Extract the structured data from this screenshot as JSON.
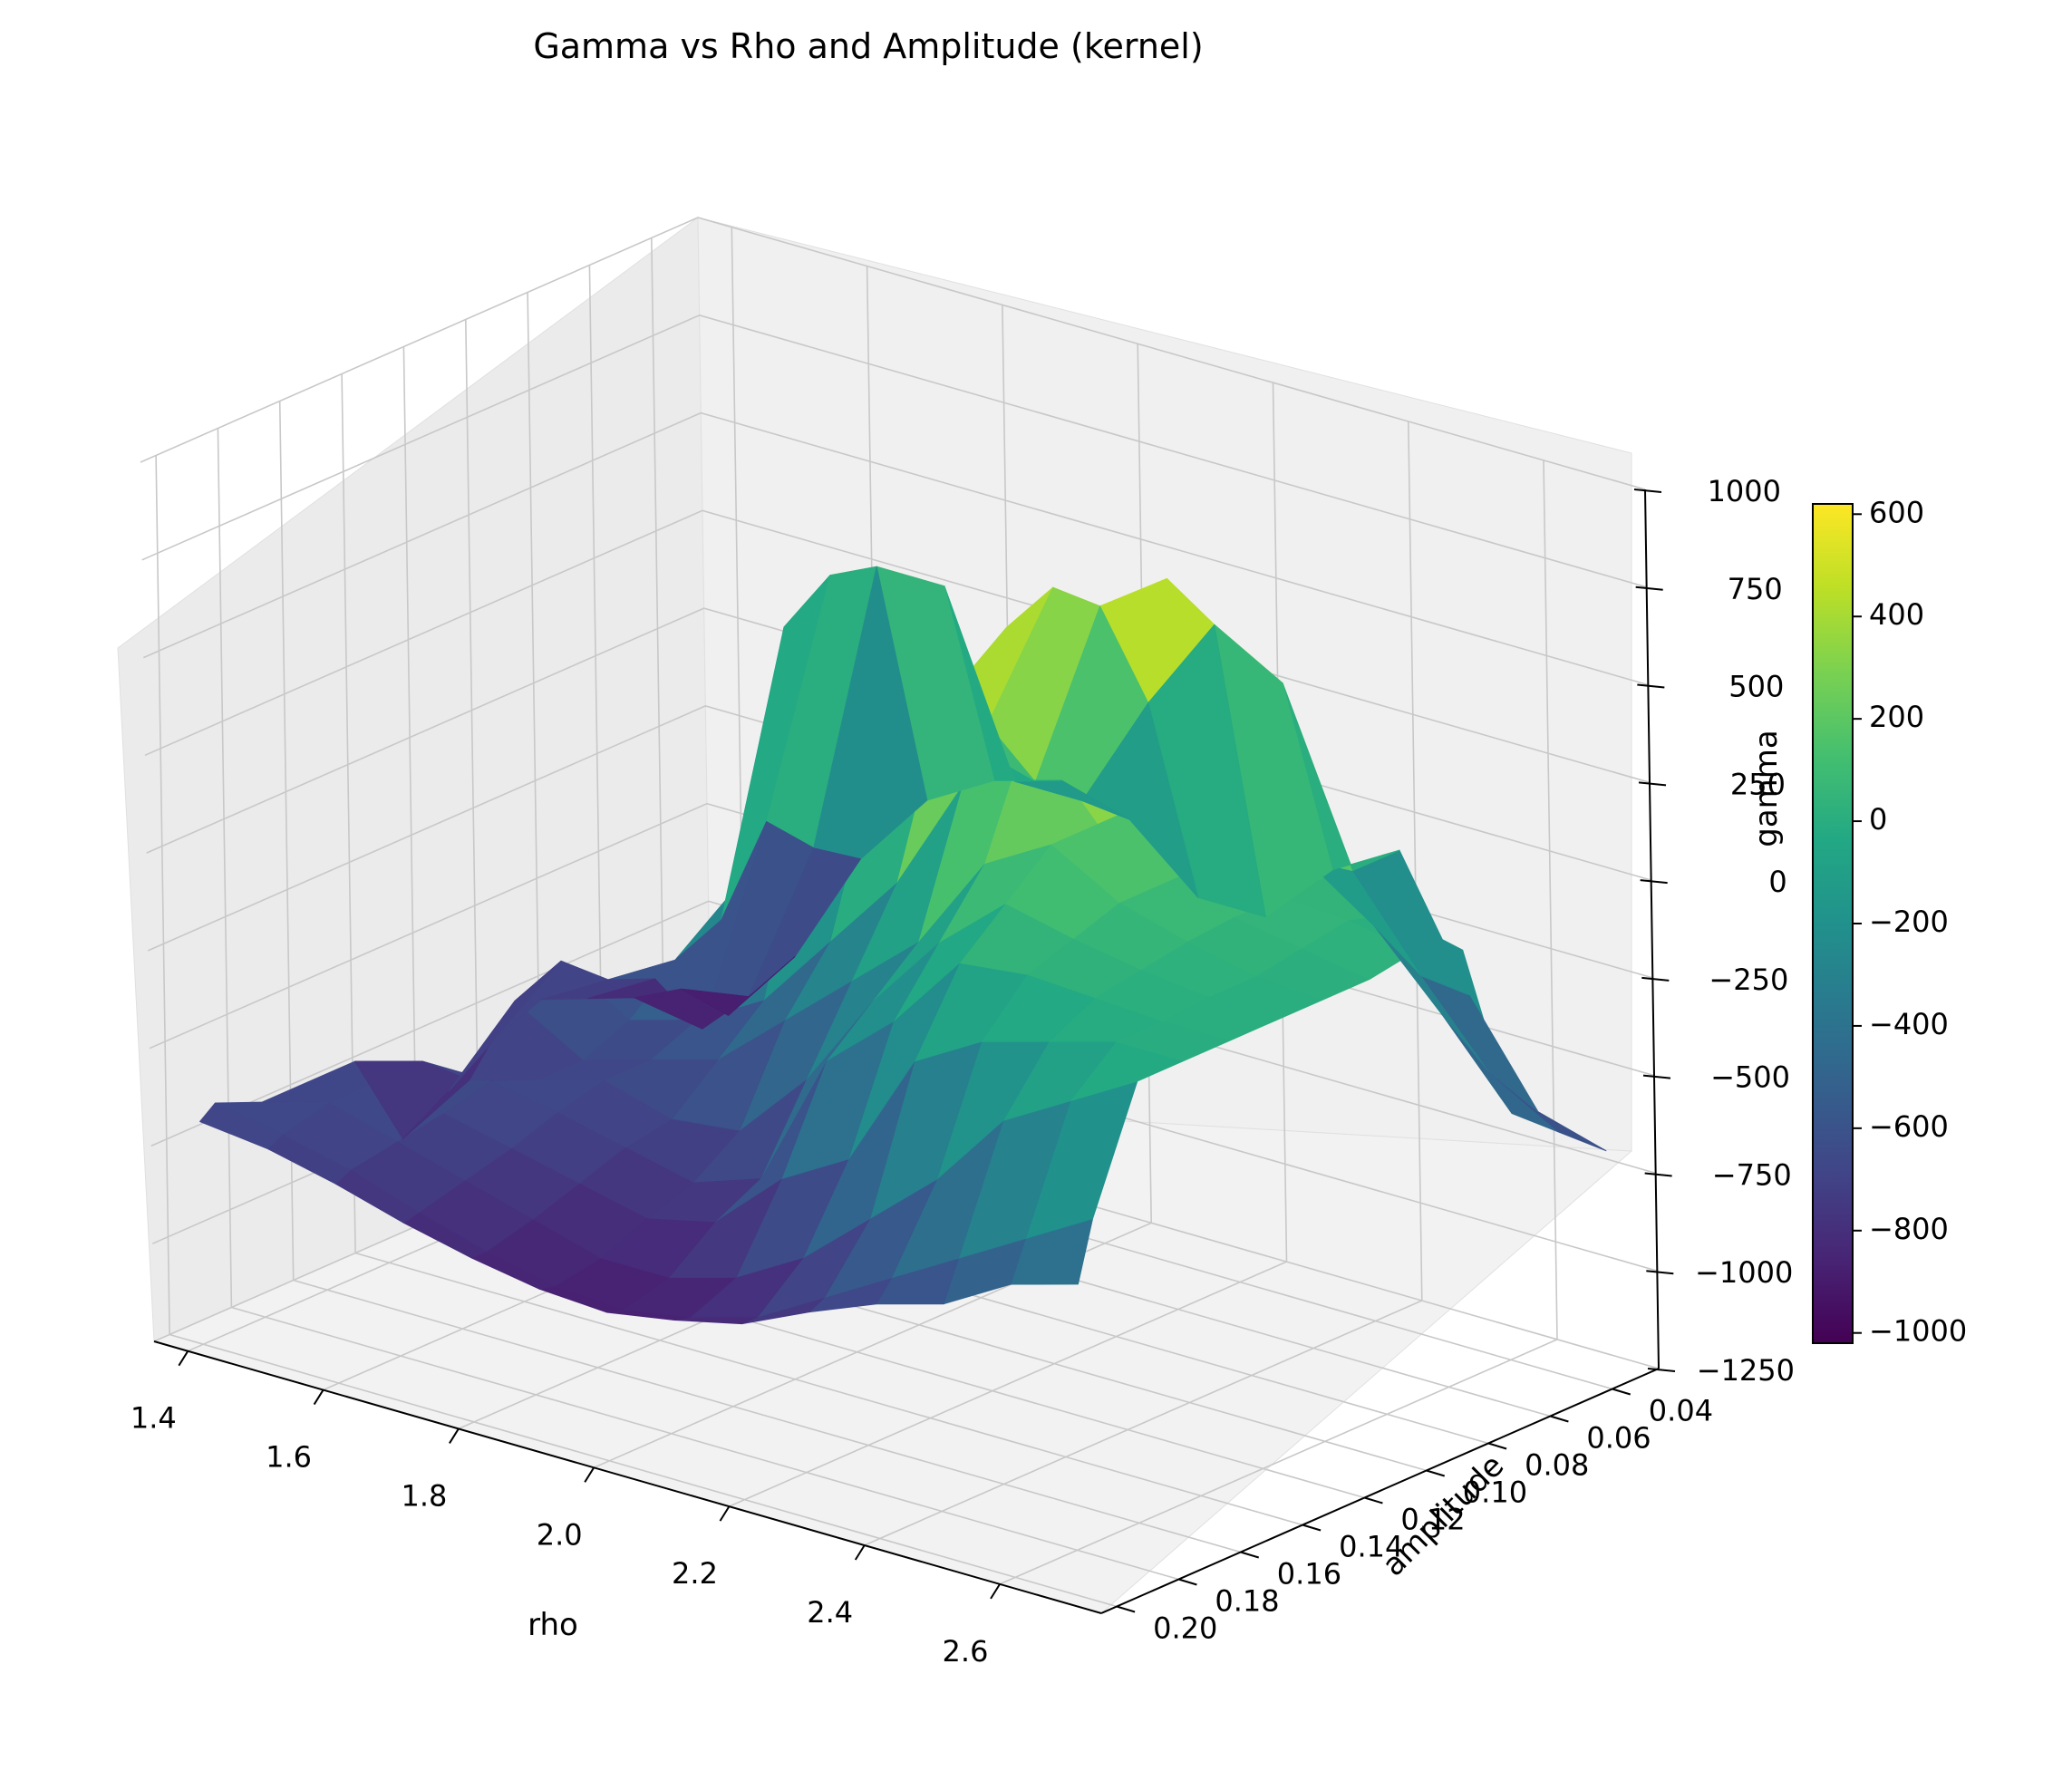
{
  "chart_data": {
    "type": "surface3d",
    "title": "Gamma vs Rho and Amplitude (kernel)",
    "xlabel": "rho",
    "ylabel": "amplitude",
    "zlabel": "gamma",
    "xlim": [
      1.35,
      2.75
    ],
    "ylim": [
      0.025,
      0.205
    ],
    "zlim": [
      -1250,
      1000
    ],
    "x_ticks": [
      "1.4",
      "1.6",
      "1.8",
      "2.0",
      "2.2",
      "2.4",
      "2.6"
    ],
    "y_ticks": [
      "0.04",
      "0.06",
      "0.08",
      "0.10",
      "0.12",
      "0.14",
      "0.16",
      "0.18",
      "0.20"
    ],
    "z_ticks": [
      "−1250",
      "−1000",
      "−750",
      "−500",
      "−250",
      "0",
      "250",
      "500",
      "750",
      "1000"
    ],
    "colorbar": {
      "colormap": "viridis",
      "range": [
        -1020,
        620
      ],
      "ticks": [
        "−1000",
        "−800",
        "−600",
        "−400",
        "−200",
        "0",
        "200",
        "400",
        "600"
      ]
    },
    "grid": true,
    "rho": [
      1.4,
      1.5,
      1.6,
      1.7,
      1.8,
      1.9,
      2.0,
      2.1,
      2.2,
      2.3,
      2.4,
      2.5,
      2.6,
      2.7
    ],
    "amplitude": [
      0.03,
      0.045,
      0.06,
      0.075,
      0.09,
      0.105,
      0.12,
      0.135,
      0.15,
      0.165,
      0.18,
      0.195,
      0.2
    ],
    "gamma": [
      [
        -1000,
        -800,
        -500,
        -300,
        -200,
        -150,
        -200,
        -350,
        -350,
        -180,
        -80,
        -400,
        -650,
        -700
      ],
      [
        -880,
        -850,
        -420,
        350,
        350,
        -100,
        -100,
        200,
        450,
        350,
        -80,
        -300,
        -500,
        -600
      ],
      [
        -850,
        -880,
        -300,
        380,
        280,
        50,
        0,
        500,
        620,
        450,
        0,
        -120,
        -300,
        -500
      ],
      [
        -800,
        -700,
        -500,
        300,
        200,
        100,
        200,
        600,
        550,
        300,
        100,
        60,
        10,
        -30
      ],
      [
        -750,
        -650,
        -550,
        -300,
        -50,
        100,
        300,
        550,
        520,
        200,
        100,
        60,
        50,
        20
      ],
      [
        -800,
        -550,
        -650,
        -600,
        -500,
        -300,
        -100,
        200,
        400,
        200,
        100,
        60,
        30,
        0
      ],
      [
        -880,
        -600,
        -700,
        -650,
        -600,
        -450,
        -300,
        -150,
        100,
        200,
        100,
        50,
        10,
        0
      ],
      [
        -950,
        -750,
        -700,
        -650,
        -700,
        -680,
        -500,
        -250,
        -50,
        100,
        60,
        30,
        10,
        0
      ],
      [
        -700,
        -650,
        -650,
        -680,
        -720,
        -760,
        -700,
        -350,
        -200,
        0,
        20,
        10,
        0,
        0
      ],
      [
        -700,
        -650,
        -680,
        -720,
        -760,
        -800,
        -760,
        -600,
        -500,
        -200,
        -100,
        -50,
        0,
        0
      ],
      [
        -700,
        -650,
        -700,
        -750,
        -800,
        -850,
        -850,
        -800,
        -700,
        -550,
        -400,
        -200,
        -100,
        0
      ],
      [
        -650,
        -680,
        -720,
        -780,
        -830,
        -870,
        -880,
        -850,
        -800,
        -700,
        -600,
        -500,
        -400,
        -300
      ],
      [
        -680,
        -700,
        -740,
        -790,
        -830,
        -860,
        -870,
        -840,
        -800,
        -720,
        -650,
        -600,
        -500,
        -450
      ]
    ]
  }
}
